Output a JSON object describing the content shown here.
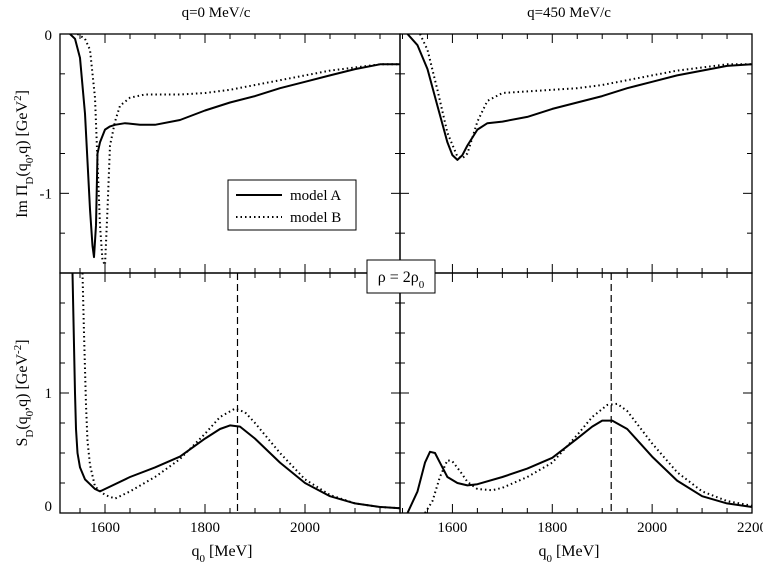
{
  "chart_data": {
    "type": "line",
    "layout": "2x2 panel grid, shared x axes per column",
    "column_titles": [
      "q=0 MeV/c",
      "q=450 MeV/c"
    ],
    "xlabel": "q",
    "xlabel_sub": "0",
    "xlabel_unit": " [MeV]",
    "top_ylabel": "Im Π",
    "top_ylabel_sub1": "D",
    "top_ylabel_mid": "(q",
    "top_ylabel_sub2": "0",
    "top_ylabel_end": ",q) [GeV",
    "top_ylabel_sup": "2",
    "top_ylabel_close": "]",
    "bottom_ylabel": "S",
    "bottom_ylabel_sub1": "D",
    "bottom_ylabel_mid": "(q",
    "bottom_ylabel_sub2": "0",
    "bottom_ylabel_end": ",q) [GeV",
    "bottom_ylabel_sup": "-2",
    "bottom_ylabel_close": "]",
    "density_label": "ρ = 2ρ",
    "density_label_sub": "0",
    "legend": [
      {
        "name": "model A",
        "style": "solid"
      },
      {
        "name": "model B",
        "style": "dotted"
      }
    ],
    "legend_position": "lower-right of top-left panel",
    "left_column_xlim": [
      1510,
      2190
    ],
    "right_column_xlim": [
      1495,
      2200
    ],
    "left_column_xticks": [
      1600,
      1800,
      2000
    ],
    "right_column_xticks": [
      1600,
      1800,
      2000,
      2200
    ],
    "top_ylim": [
      -1.5,
      0
    ],
    "top_yticks": [
      {
        "value": 0,
        "label": "0"
      },
      {
        "value": -1,
        "label": "-1"
      }
    ],
    "bottom_ylim": [
      0,
      2
    ],
    "bottom_yticks": [
      {
        "value": 0,
        "label": "0"
      },
      {
        "value": 1,
        "label": "1"
      }
    ],
    "panels": [
      {
        "id": "top-left",
        "quantity": "Im Pi_D",
        "momentum": "q=0 MeV/c",
        "series": [
          {
            "name": "model A",
            "x": [
              1530,
              1540,
              1550,
              1560,
              1565,
              1570,
              1575,
              1578,
              1582,
              1585,
              1590,
              1600,
              1610,
              1620,
              1640,
              1670,
              1700,
              1750,
              1800,
              1850,
              1900,
              1950,
              2000,
              2050,
              2100,
              2150,
              2190
            ],
            "y": [
              0,
              -0.03,
              -0.15,
              -0.5,
              -0.8,
              -1.1,
              -1.33,
              -1.4,
              -1.2,
              -0.75,
              -0.68,
              -0.6,
              -0.58,
              -0.57,
              -0.56,
              -0.57,
              -0.57,
              -0.54,
              -0.48,
              -0.43,
              -0.39,
              -0.34,
              -0.3,
              -0.26,
              -0.22,
              -0.19,
              -0.19
            ]
          },
          {
            "name": "model B",
            "x": [
              1545,
              1560,
              1570,
              1580,
              1585,
              1590,
              1595,
              1600,
              1605,
              1610,
              1620,
              1630,
              1650,
              1680,
              1700,
              1750,
              1800,
              1850,
              1900,
              1950,
              2000,
              2050,
              2100,
              2150,
              2190
            ],
            "y": [
              0,
              -0.03,
              -0.1,
              -0.4,
              -0.8,
              -1.2,
              -1.42,
              -1.45,
              -1.1,
              -0.7,
              -0.55,
              -0.45,
              -0.4,
              -0.38,
              -0.38,
              -0.38,
              -0.37,
              -0.35,
              -0.32,
              -0.29,
              -0.26,
              -0.23,
              -0.21,
              -0.19,
              -0.19
            ]
          }
        ]
      },
      {
        "id": "top-right",
        "quantity": "Im Pi_D",
        "momentum": "q=450 MeV/c",
        "series": [
          {
            "name": "model A",
            "x": [
              1510,
              1530,
              1550,
              1570,
              1590,
              1600,
              1610,
              1620,
              1630,
              1650,
              1670,
              1700,
              1750,
              1800,
              1850,
              1900,
              1950,
              2000,
              2050,
              2100,
              2150,
              2200
            ],
            "y": [
              0,
              -0.07,
              -0.22,
              -0.45,
              -0.68,
              -0.76,
              -0.79,
              -0.76,
              -0.7,
              -0.6,
              -0.56,
              -0.55,
              -0.52,
              -0.47,
              -0.43,
              -0.39,
              -0.34,
              -0.3,
              -0.26,
              -0.23,
              -0.2,
              -0.19
            ]
          },
          {
            "name": "model B",
            "x": [
              1535,
              1550,
              1570,
              1590,
              1610,
              1620,
              1630,
              1640,
              1650,
              1670,
              1700,
              1750,
              1800,
              1850,
              1900,
              1950,
              2000,
              2050,
              2100,
              2150,
              2200
            ],
            "y": [
              0,
              -0.1,
              -0.35,
              -0.62,
              -0.77,
              -0.78,
              -0.75,
              -0.65,
              -0.55,
              -0.42,
              -0.37,
              -0.36,
              -0.35,
              -0.34,
              -0.32,
              -0.29,
              -0.26,
              -0.23,
              -0.21,
              -0.19,
              -0.19
            ]
          }
        ]
      },
      {
        "id": "bottom-left",
        "quantity": "S_D",
        "momentum": "q=0 MeV/c",
        "marker_x": 1865,
        "series": [
          {
            "name": "model A",
            "x": [
              1535,
              1540,
              1542,
              1545,
              1550,
              1560,
              1570,
              1580,
              1590,
              1600,
              1650,
              1700,
              1750,
              1800,
              1830,
              1850,
              1870,
              1900,
              1950,
              2000,
              2050,
              2100,
              2150,
              2190
            ],
            "y": [
              2.0,
              1.0,
              0.7,
              0.5,
              0.38,
              0.28,
              0.24,
              0.2,
              0.18,
              0.2,
              0.3,
              0.38,
              0.47,
              0.62,
              0.7,
              0.73,
              0.72,
              0.62,
              0.42,
              0.25,
              0.14,
              0.08,
              0.05,
              0.04
            ]
          },
          {
            "name": "model B",
            "x": [
              1555,
              1558,
              1562,
              1565,
              1570,
              1580,
              1600,
              1620,
              1650,
              1700,
              1750,
              1800,
              1830,
              1860,
              1880,
              1900,
              1950,
              2000,
              2050,
              2100,
              2150,
              2190
            ],
            "y": [
              2.0,
              1.5,
              0.9,
              0.6,
              0.4,
              0.22,
              0.15,
              0.12,
              0.18,
              0.3,
              0.45,
              0.66,
              0.8,
              0.87,
              0.84,
              0.75,
              0.5,
              0.28,
              0.15,
              0.08,
              0.05,
              0.04
            ]
          }
        ]
      },
      {
        "id": "bottom-right",
        "quantity": "S_D",
        "momentum": "q=450 MeV/c",
        "marker_x": 1918,
        "series": [
          {
            "name": "model A",
            "x": [
              1510,
              1530,
              1545,
              1555,
              1565,
              1575,
              1590,
              1610,
              1630,
              1650,
              1700,
              1750,
              1800,
              1850,
              1880,
              1900,
              1920,
              1950,
              2000,
              2050,
              2100,
              2150,
              2200
            ],
            "y": [
              0,
              0.18,
              0.42,
              0.51,
              0.5,
              0.42,
              0.3,
              0.25,
              0.23,
              0.24,
              0.3,
              0.37,
              0.46,
              0.62,
              0.72,
              0.77,
              0.77,
              0.7,
              0.47,
              0.27,
              0.14,
              0.08,
              0.05
            ]
          },
          {
            "name": "model B",
            "x": [
              1545,
              1560,
              1575,
              1590,
              1600,
              1615,
              1630,
              1650,
              1680,
              1700,
              1750,
              1800,
              1850,
              1880,
              1910,
              1930,
              1950,
              2000,
              2050,
              2100,
              2150,
              2200
            ],
            "y": [
              0,
              0.1,
              0.3,
              0.44,
              0.43,
              0.35,
              0.26,
              0.2,
              0.19,
              0.21,
              0.3,
              0.42,
              0.65,
              0.8,
              0.9,
              0.91,
              0.85,
              0.58,
              0.34,
              0.18,
              0.1,
              0.06
            ]
          }
        ]
      }
    ]
  }
}
